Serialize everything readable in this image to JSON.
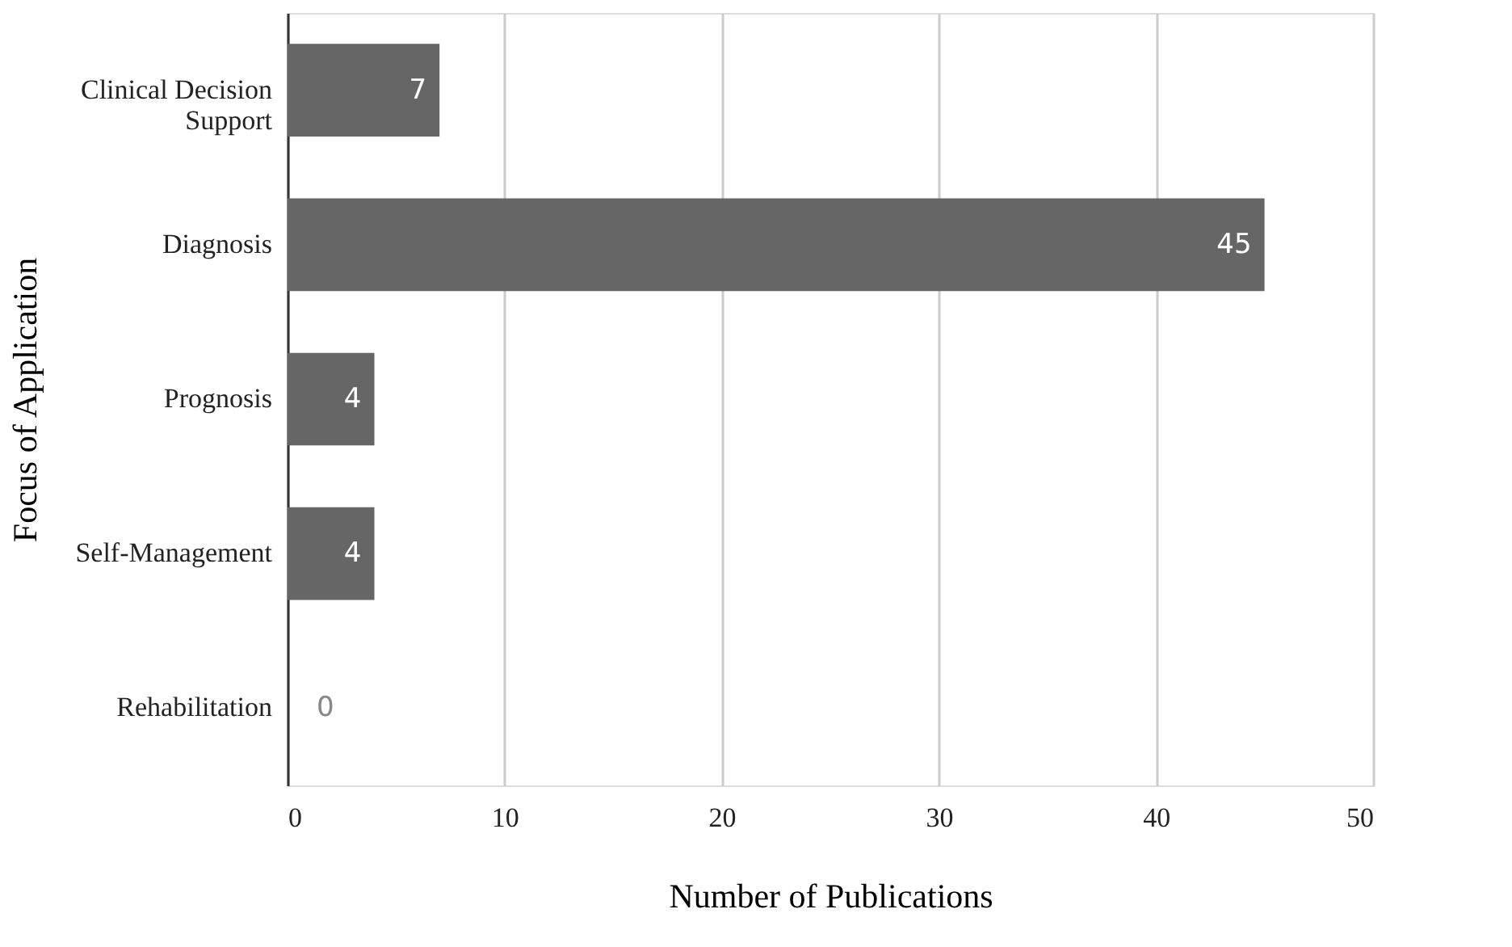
{
  "chart_data": {
    "type": "bar",
    "orientation": "horizontal",
    "xlabel": "Number of Publications",
    "ylabel": "Focus of Application",
    "categories": [
      "Clinical Decision Support",
      "Diagnosis",
      "Prognosis",
      "Self-Management",
      "Rehabilitation"
    ],
    "values": [
      7,
      45,
      4,
      4,
      0
    ],
    "color": "#666666",
    "xlim": [
      0,
      50
    ],
    "xticks": [
      0,
      10,
      20,
      30,
      40,
      50
    ],
    "grid": "x",
    "data_labels": true
  }
}
